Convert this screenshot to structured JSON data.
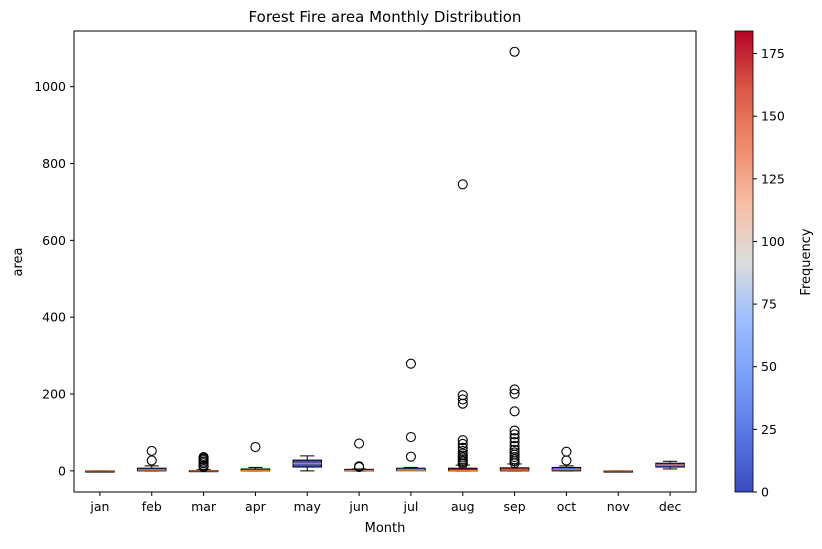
{
  "chart_data": {
    "type": "box",
    "title": "Forest Fire area Monthly Distribution",
    "xlabel": "Month",
    "ylabel": "area",
    "categories": [
      "jan",
      "feb",
      "mar",
      "apr",
      "may",
      "jun",
      "jul",
      "aug",
      "sep",
      "oct",
      "nov",
      "dec"
    ],
    "ylim": [
      -55,
      1145
    ],
    "yticks": [
      0,
      200,
      400,
      600,
      800,
      1000
    ],
    "boxes": [
      {
        "month": "jan",
        "whislo": 0,
        "q1": 0,
        "med": 0,
        "q3": 0,
        "whishi": 0,
        "fliers": [],
        "frequency": 2
      },
      {
        "month": "feb",
        "whislo": 0,
        "q1": 0,
        "med": 2,
        "q3": 7,
        "whishi": 13,
        "fliers": [
          27,
          52
        ],
        "frequency": 20
      },
      {
        "month": "mar",
        "whislo": 0,
        "q1": 0,
        "med": 0,
        "q3": 1,
        "whishi": 3,
        "fliers": [
          10,
          12,
          15,
          20,
          24,
          28,
          31,
          33,
          36
        ],
        "frequency": 54
      },
      {
        "month": "apr",
        "whislo": 0,
        "q1": 0,
        "med": 1,
        "q3": 5,
        "whishi": 9,
        "fliers": [
          62
        ],
        "frequency": 9
      },
      {
        "month": "may",
        "whislo": 0,
        "q1": 10,
        "med": 19,
        "q3": 28,
        "whishi": 39,
        "fliers": [],
        "frequency": 2
      },
      {
        "month": "jun",
        "whislo": 0,
        "q1": 0,
        "med": 1,
        "q3": 4,
        "whishi": 5,
        "fliers": [
          10,
          12,
          71
        ],
        "frequency": 17
      },
      {
        "month": "jul",
        "whislo": 0,
        "q1": 0,
        "med": 0,
        "q3": 7,
        "whishi": 9,
        "fliers": [
          37,
          88,
          279
        ],
        "frequency": 32
      },
      {
        "month": "aug",
        "whislo": 0,
        "q1": 0,
        "med": 1,
        "q3": 7,
        "whishi": 15,
        "fliers": [
          18,
          22,
          26,
          30,
          35,
          40,
          45,
          52,
          60,
          70,
          80,
          175,
          186,
          197,
          746
        ],
        "frequency": 184
      },
      {
        "month": "sep",
        "whislo": 0,
        "q1": 0,
        "med": 2,
        "q3": 8,
        "whishi": 18,
        "fliers": [
          20,
          25,
          30,
          36,
          42,
          48,
          55,
          65,
          75,
          85,
          95,
          105,
          155,
          201,
          212,
          1091
        ],
        "frequency": 172
      },
      {
        "month": "oct",
        "whislo": 0,
        "q1": 0,
        "med": 3,
        "q3": 9,
        "whishi": 13,
        "fliers": [
          27,
          50
        ],
        "frequency": 15
      },
      {
        "month": "nov",
        "whislo": 0,
        "q1": 0,
        "med": 0,
        "q3": 0,
        "whishi": 0,
        "fliers": [],
        "frequency": 1
      },
      {
        "month": "dec",
        "whislo": 5,
        "q1": 10,
        "med": 15,
        "q3": 20,
        "whishi": 25,
        "fliers": [],
        "frequency": 9
      }
    ],
    "colorbar": {
      "label": "Frequency",
      "range": [
        0,
        184
      ],
      "ticks": [
        0,
        25,
        50,
        75,
        100,
        125,
        150,
        175
      ],
      "colormap": "coolwarm"
    },
    "median_color": "#e07b39",
    "flier_marker": "open circle",
    "grid": false
  }
}
